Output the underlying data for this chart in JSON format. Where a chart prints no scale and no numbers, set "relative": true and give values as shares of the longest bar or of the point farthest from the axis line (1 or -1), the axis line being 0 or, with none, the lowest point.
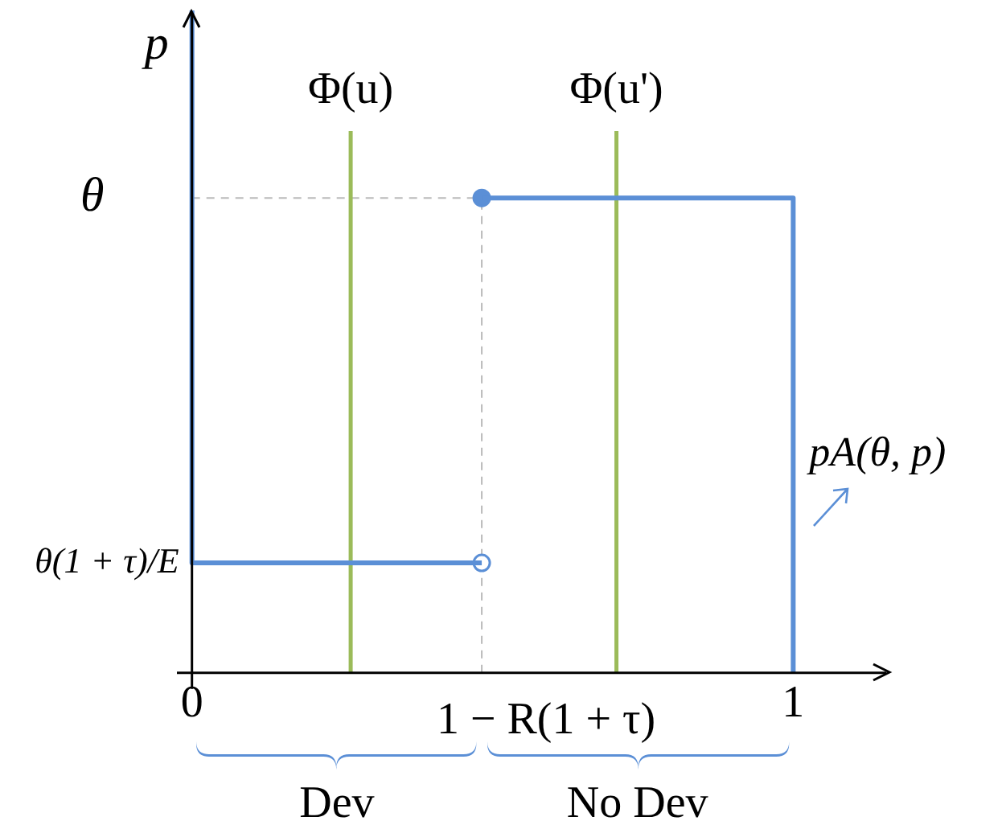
{
  "chart_data": {
    "type": "line",
    "relative": true,
    "ylabel": "p",
    "xlim": [
      -0.025,
      1.16
    ],
    "xticks": [
      0,
      1
    ],
    "series": [
      {
        "color": "#5b8fd6",
        "x": [
          0,
          0,
          0.482
        ],
        "values": [
          1,
          0.166,
          0.166
        ]
      },
      {
        "color": "#5b8fd6",
        "x": [
          0.482,
          1,
          1
        ],
        "values": [
          0.717,
          0.717,
          0
        ]
      },
      {
        "type": "scatter",
        "color": "#5b8fd6",
        "colors": [
          "#ffffff",
          "#5b8fd6"
        ],
        "marker": "circle",
        "x": [
          0.482,
          0.482
        ],
        "values": [
          0.166,
          0.717
        ]
      }
    ],
    "ref_lines": [
      {
        "axis": "y",
        "value": 0.717,
        "label": "θ",
        "color": "#bbbbbb",
        "line_style": "dashed"
      },
      {
        "axis": "x",
        "value": 0.482,
        "label": "1 − R(1 + τ)",
        "color": "#bbbbbb",
        "line_style": "dashed"
      },
      {
        "axis": "x",
        "value": 0.264,
        "label": "Φ(u)",
        "color": "#9bbb59",
        "line_style": "solid"
      },
      {
        "axis": "x",
        "value": 0.706,
        "label": "Φ(u')",
        "color": "#9bbb59",
        "line_style": "solid"
      }
    ],
    "annotations": [
      "θ(1 + τ)/E",
      "pA(θ, p)",
      "Dev",
      "No Dev"
    ],
    "legend": false
  }
}
